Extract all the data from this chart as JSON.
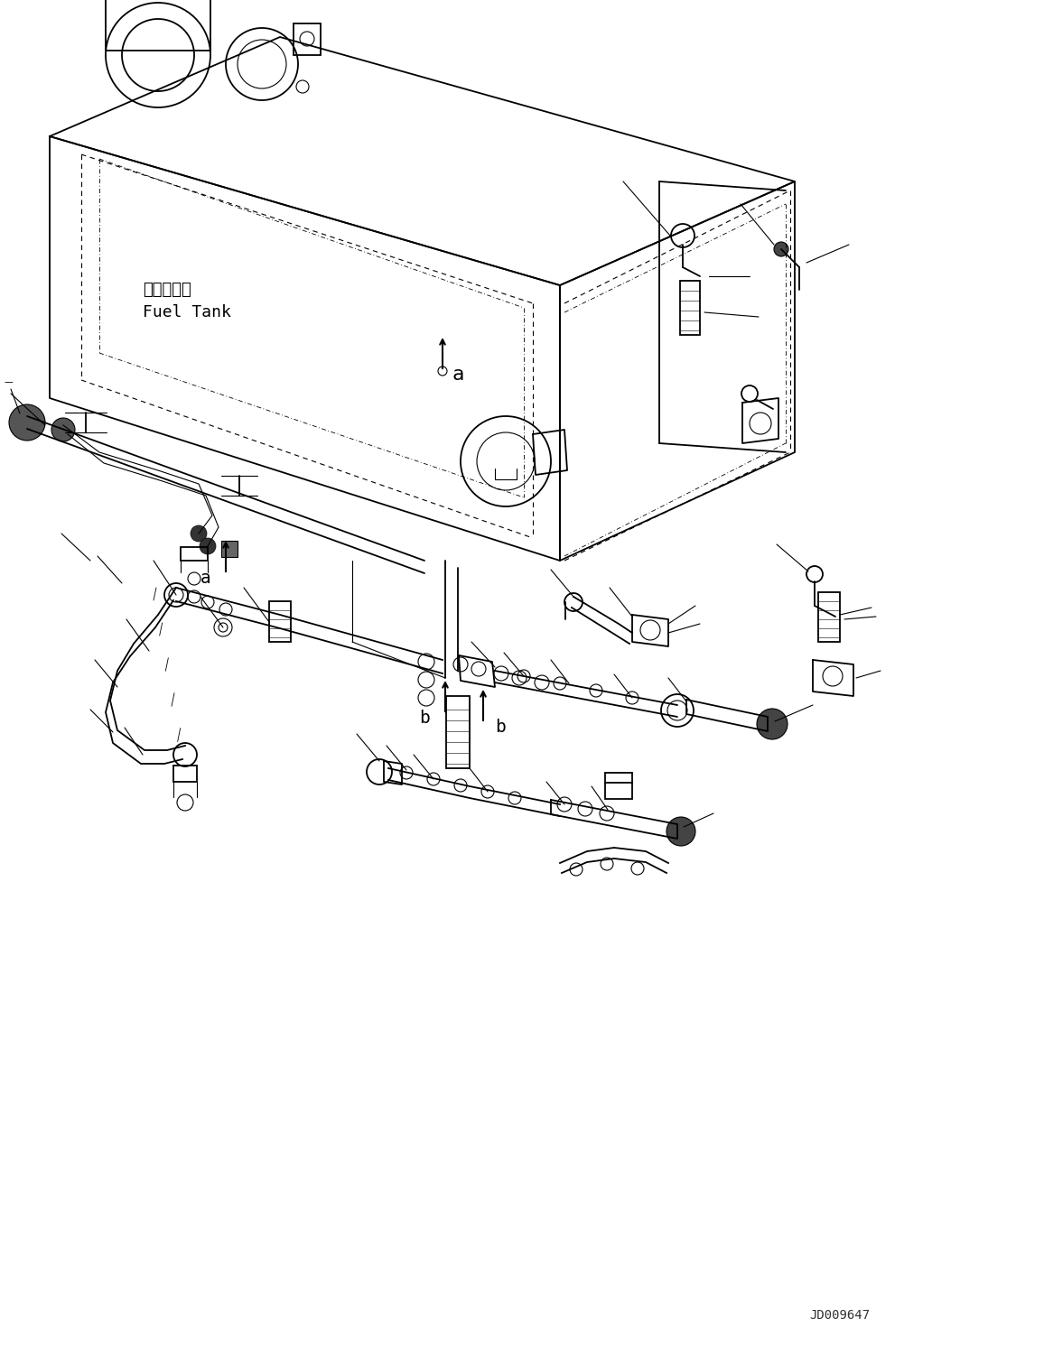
{
  "background_color": "#ffffff",
  "line_color": "#000000",
  "fig_width": 11.56,
  "fig_height": 14.91,
  "watermark": "JD009647",
  "fuel_tank_label_jp": "燃料タンク",
  "fuel_tank_label_en": "Fuel Tank"
}
